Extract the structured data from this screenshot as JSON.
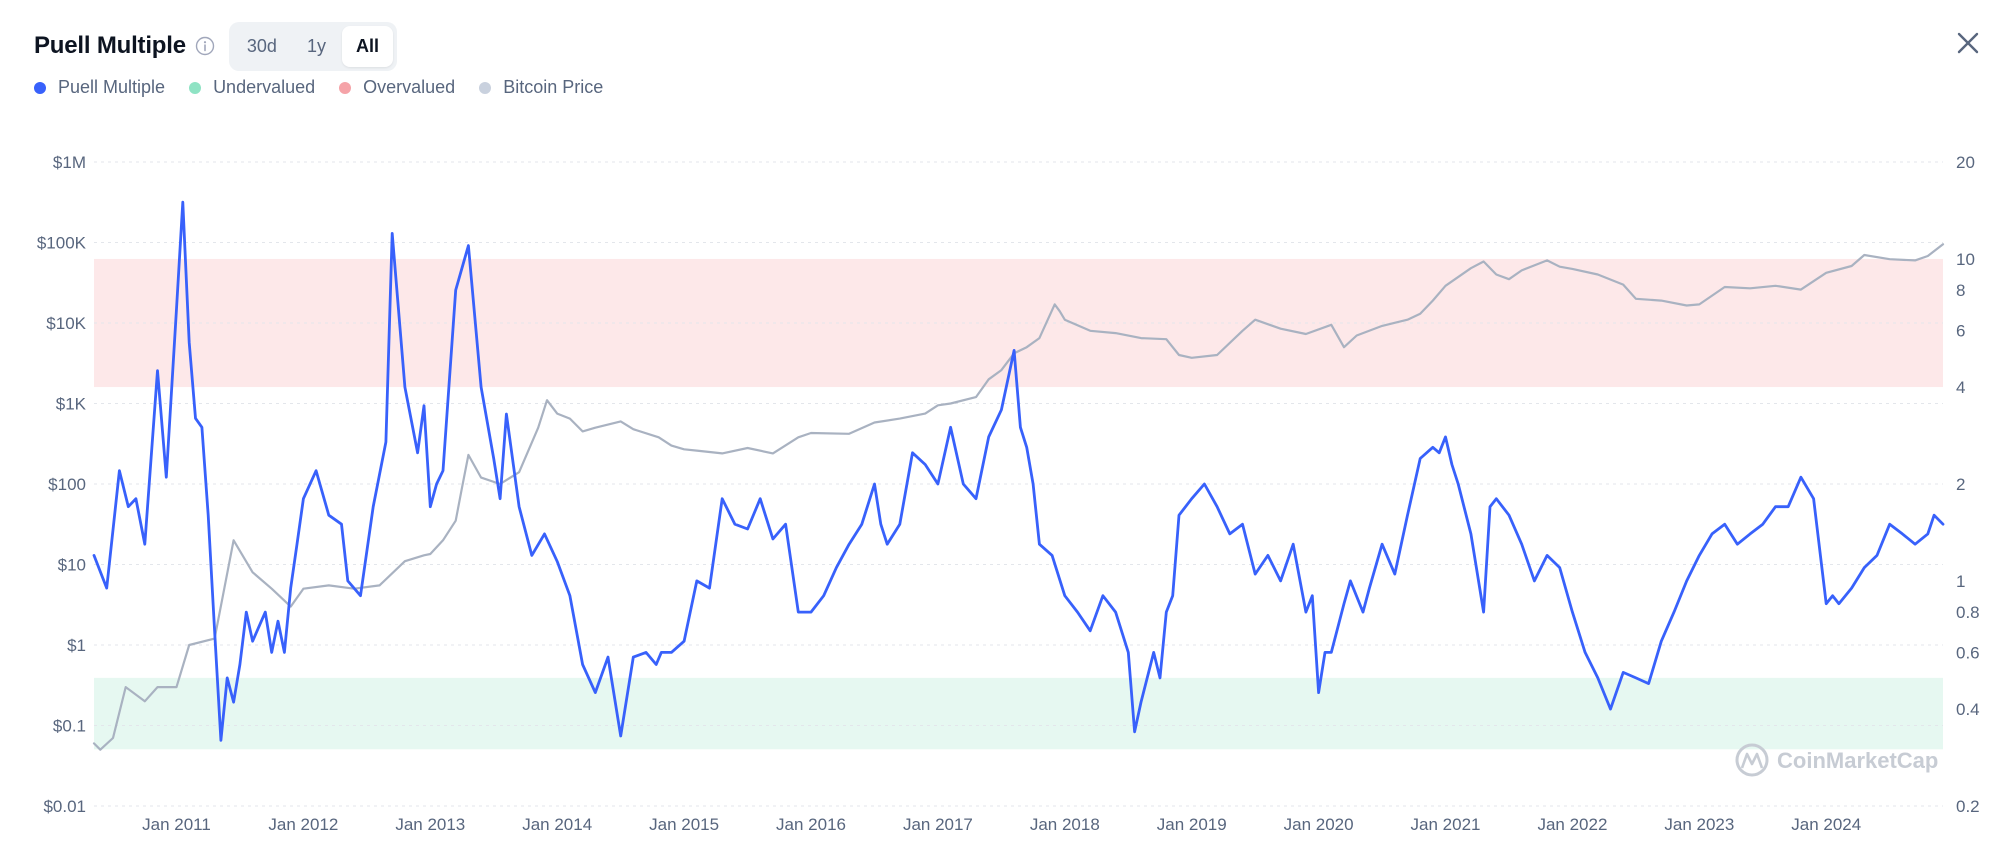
{
  "header": {
    "title": "Puell Multiple",
    "ranges": [
      "30d",
      "1y",
      "All"
    ],
    "active_range": "All"
  },
  "legend": [
    {
      "label": "Puell Multiple",
      "color": "#3861fb"
    },
    {
      "label": "Undervalued",
      "color": "#8fe3c4"
    },
    {
      "label": "Overvalued",
      "color": "#f5a3a8"
    },
    {
      "label": "Bitcoin Price",
      "color": "#c9d1de"
    }
  ],
  "watermark": "CoinMarketCap",
  "chart_data": {
    "type": "line",
    "x_ticks": [
      "Jan 2011",
      "Jan 2012",
      "Jan 2013",
      "Jan 2014",
      "Jan 2015",
      "Jan 2016",
      "Jan 2017",
      "Jan 2018",
      "Jan 2019",
      "Jan 2020",
      "Jan 2021",
      "Jan 2022",
      "Jan 2023",
      "Jan 2024"
    ],
    "x_range": [
      2010.35,
      2024.92
    ],
    "left_axis": {
      "scale": "log",
      "ticks": [
        0.01,
        0.1,
        1,
        10,
        100,
        1000,
        10000,
        100000,
        1000000
      ],
      "tick_labels": [
        "$0.01",
        "$0.1",
        "$1",
        "$10",
        "$100",
        "$1K",
        "$10K",
        "$100K",
        "$1M"
      ],
      "range": [
        0.01,
        1000000
      ]
    },
    "right_axis": {
      "scale": "log",
      "ticks": [
        0.2,
        0.4,
        0.6,
        0.8,
        1,
        2,
        4,
        6,
        8,
        10,
        20
      ],
      "tick_labels": [
        "0.2",
        "0.4",
        "0.6",
        "0.8",
        "1",
        "2",
        "4",
        "6",
        "8",
        "10",
        "20"
      ],
      "range": [
        0.2,
        20
      ]
    },
    "zones": [
      {
        "name": "Overvalued",
        "from": 4,
        "to": 10,
        "color": "#fde8e9"
      },
      {
        "name": "Undervalued",
        "from": 0.3,
        "to": 0.5,
        "color": "#e6f8f1"
      }
    ],
    "series": [
      {
        "name": "Puell Multiple",
        "axis": "right",
        "color": "#3861fb",
        "x": [
          2010.35,
          2010.45,
          2010.55,
          2010.62,
          2010.68,
          2010.75,
          2010.85,
          2010.92,
          2011.0,
          2011.05,
          2011.1,
          2011.15,
          2011.2,
          2011.25,
          2011.3,
          2011.35,
          2011.4,
          2011.45,
          2011.5,
          2011.55,
          2011.6,
          2011.7,
          2011.75,
          2011.8,
          2011.85,
          2011.9,
          2011.95,
          2012.0,
          2012.1,
          2012.2,
          2012.3,
          2012.35,
          2012.45,
          2012.55,
          2012.65,
          2012.7,
          2012.8,
          2012.9,
          2012.95,
          2013.0,
          2013.05,
          2013.1,
          2013.2,
          2013.3,
          2013.4,
          2013.5,
          2013.55,
          2013.6,
          2013.7,
          2013.8,
          2013.9,
          2014.0,
          2014.1,
          2014.2,
          2014.3,
          2014.4,
          2014.5,
          2014.6,
          2014.7,
          2014.78,
          2014.82,
          2014.9,
          2015.0,
          2015.1,
          2015.2,
          2015.3,
          2015.4,
          2015.5,
          2015.6,
          2015.7,
          2015.8,
          2015.9,
          2016.0,
          2016.1,
          2016.2,
          2016.3,
          2016.4,
          2016.5,
          2016.55,
          2016.6,
          2016.7,
          2016.8,
          2016.9,
          2017.0,
          2017.1,
          2017.2,
          2017.3,
          2017.4,
          2017.5,
          2017.6,
          2017.65,
          2017.7,
          2017.75,
          2017.8,
          2017.9,
          2018.0,
          2018.1,
          2018.2,
          2018.3,
          2018.4,
          2018.5,
          2018.55,
          2018.6,
          2018.7,
          2018.75,
          2018.8,
          2018.85,
          2018.9,
          2019.0,
          2019.1,
          2019.2,
          2019.3,
          2019.4,
          2019.5,
          2019.6,
          2019.7,
          2019.8,
          2019.9,
          2019.95,
          2020.0,
          2020.05,
          2020.1,
          2020.2,
          2020.25,
          2020.35,
          2020.4,
          2020.5,
          2020.6,
          2020.7,
          2020.8,
          2020.9,
          2020.95,
          2021.0,
          2021.05,
          2021.1,
          2021.2,
          2021.3,
          2021.35,
          2021.4,
          2021.5,
          2021.6,
          2021.7,
          2021.8,
          2021.9,
          2022.0,
          2022.1,
          2022.2,
          2022.3,
          2022.4,
          2022.5,
          2022.6,
          2022.7,
          2022.8,
          2022.9,
          2023.0,
          2023.1,
          2023.2,
          2023.3,
          2023.4,
          2023.5,
          2023.6,
          2023.7,
          2023.8,
          2023.9,
          2024.0,
          2024.05,
          2024.1,
          2024.2,
          2024.3,
          2024.4,
          2024.5,
          2024.6,
          2024.7,
          2024.8,
          2024.85,
          2024.92
        ],
        "y": [
          1.2,
          0.95,
          2.2,
          1.7,
          1.8,
          1.3,
          4.5,
          2.1,
          7.0,
          15.0,
          5.5,
          3.2,
          3.0,
          1.6,
          0.7,
          0.32,
          0.5,
          0.42,
          0.55,
          0.8,
          0.65,
          0.8,
          0.6,
          0.75,
          0.6,
          0.95,
          1.3,
          1.8,
          2.2,
          1.6,
          1.5,
          1.0,
          0.9,
          1.7,
          2.7,
          12.0,
          4.0,
          2.5,
          3.5,
          1.7,
          2.0,
          2.2,
          8.0,
          11.0,
          4.0,
          2.4,
          1.8,
          3.3,
          1.7,
          1.2,
          1.4,
          1.15,
          0.9,
          0.55,
          0.45,
          0.58,
          0.33,
          0.58,
          0.6,
          0.55,
          0.6,
          0.6,
          0.65,
          1.0,
          0.95,
          1.8,
          1.5,
          1.45,
          1.8,
          1.35,
          1.5,
          0.8,
          0.8,
          0.9,
          1.1,
          1.3,
          1.5,
          2.0,
          1.5,
          1.3,
          1.5,
          2.5,
          2.3,
          2.0,
          3.0,
          2.0,
          1.8,
          2.8,
          3.4,
          5.2,
          3.0,
          2.6,
          2.0,
          1.3,
          1.2,
          0.9,
          0.8,
          0.7,
          0.9,
          0.8,
          0.6,
          0.34,
          0.42,
          0.6,
          0.5,
          0.8,
          0.9,
          1.6,
          1.8,
          2.0,
          1.7,
          1.4,
          1.5,
          1.05,
          1.2,
          1.0,
          1.3,
          0.8,
          0.9,
          0.45,
          0.6,
          0.6,
          0.85,
          1.0,
          0.8,
          0.95,
          1.3,
          1.05,
          1.6,
          2.4,
          2.6,
          2.5,
          2.8,
          2.3,
          2.0,
          1.4,
          0.8,
          1.7,
          1.8,
          1.6,
          1.3,
          1.0,
          1.2,
          1.1,
          0.8,
          0.6,
          0.5,
          0.4,
          0.52,
          0.5,
          0.48,
          0.65,
          0.8,
          1.0,
          1.2,
          1.4,
          1.5,
          1.3,
          1.4,
          1.5,
          1.7,
          1.7,
          2.1,
          1.8,
          0.85,
          0.9,
          0.85,
          0.95,
          1.1,
          1.2,
          1.5,
          1.4,
          1.3,
          1.4,
          1.6,
          1.5
        ]
      },
      {
        "name": "Bitcoin Price",
        "axis": "left",
        "color": "#a9b2c1",
        "x": [
          2010.35,
          2010.4,
          2010.5,
          2010.6,
          2010.75,
          2010.85,
          2011.0,
          2011.1,
          2011.3,
          2011.45,
          2011.6,
          2011.75,
          2011.9,
          2012.0,
          2012.2,
          2012.4,
          2012.6,
          2012.8,
          2012.95,
          2013.0,
          2013.1,
          2013.2,
          2013.25,
          2013.3,
          2013.4,
          2013.55,
          2013.7,
          2013.85,
          2013.92,
          2014.0,
          2014.1,
          2014.2,
          2014.3,
          2014.5,
          2014.6,
          2014.8,
          2014.9,
          2015.0,
          2015.1,
          2015.3,
          2015.5,
          2015.7,
          2015.9,
          2016.0,
          2016.3,
          2016.5,
          2016.7,
          2016.9,
          2017.0,
          2017.1,
          2017.3,
          2017.4,
          2017.5,
          2017.6,
          2017.7,
          2017.8,
          2017.92,
          2017.96,
          2018.0,
          2018.2,
          2018.4,
          2018.6,
          2018.8,
          2018.9,
          2019.0,
          2019.2,
          2019.4,
          2019.5,
          2019.7,
          2019.9,
          2020.1,
          2020.2,
          2020.3,
          2020.5,
          2020.7,
          2020.8,
          2020.9,
          2021.0,
          2021.2,
          2021.3,
          2021.4,
          2021.5,
          2021.6,
          2021.8,
          2021.9,
          2022.0,
          2022.2,
          2022.4,
          2022.5,
          2022.7,
          2022.9,
          2023.0,
          2023.2,
          2023.4,
          2023.6,
          2023.8,
          2024.0,
          2024.2,
          2024.3,
          2024.5,
          2024.7,
          2024.8,
          2024.92
        ],
        "y": [
          0.06,
          0.05,
          0.07,
          0.3,
          0.2,
          0.3,
          0.3,
          1.0,
          1.2,
          20.0,
          8.0,
          5.0,
          3.0,
          5.0,
          5.5,
          5.0,
          5.5,
          11.0,
          13.0,
          13.5,
          20.0,
          35.0,
          90.0,
          230.0,
          120.0,
          100.0,
          140.0,
          500.0,
          1100.0,
          750.0,
          650.0,
          450.0,
          500.0,
          600.0,
          480.0,
          380.0,
          300.0,
          270.0,
          260.0,
          240.0,
          280.0,
          240.0,
          380.0,
          430.0,
          420.0,
          580.0,
          650.0,
          750.0,
          950.0,
          1000.0,
          1200.0,
          2000.0,
          2600.0,
          4200.0,
          5000.0,
          6500.0,
          17000.0,
          14000.0,
          11000.0,
          8000.0,
          7500.0,
          6500.0,
          6300.0,
          4000.0,
          3700.0,
          4000.0,
          8000.0,
          11000.0,
          8500.0,
          7300.0,
          9500.0,
          5000.0,
          7000.0,
          9200.0,
          11000.0,
          13000.0,
          19000.0,
          29000.0,
          48000.0,
          58000.0,
          40000.0,
          35000.0,
          45000.0,
          60000.0,
          50000.0,
          47000.0,
          40000.0,
          30000.0,
          20000.0,
          19000.0,
          16500.0,
          17000.0,
          28000.0,
          27000.0,
          29000.0,
          26000.0,
          42000.0,
          51000.0,
          70000.0,
          62000.0,
          60000.0,
          68000.0,
          95000.0
        ]
      }
    ]
  }
}
